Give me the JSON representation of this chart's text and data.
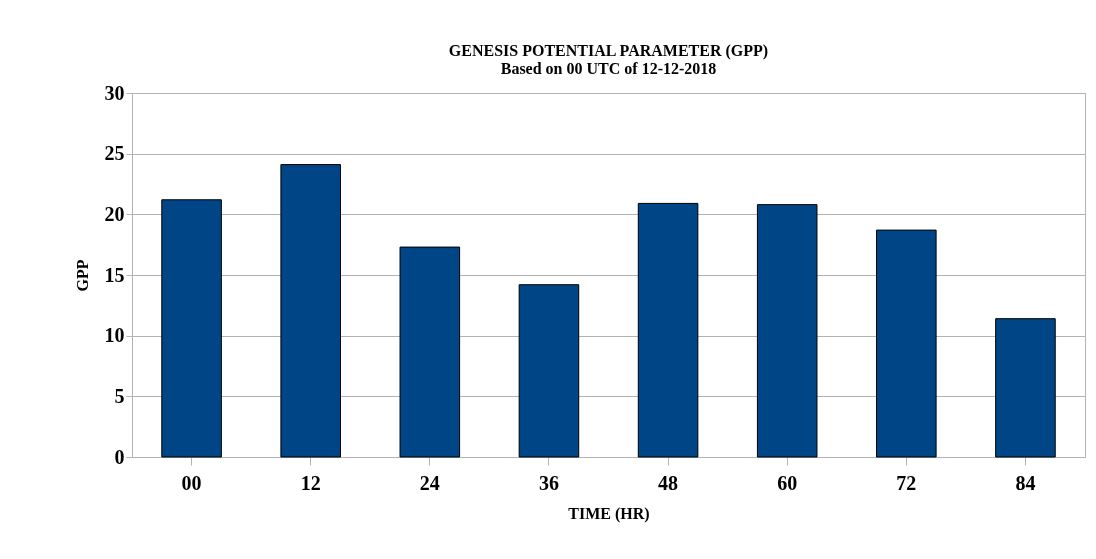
{
  "chart_data": {
    "type": "bar",
    "title": "GENESIS POTENTIAL PARAMETER (GPP)",
    "subtitle": "Based on 00 UTC of 12-12-2018",
    "xlabel": "TIME (HR)",
    "ylabel": "GPP",
    "categories": [
      "00",
      "12",
      "24",
      "36",
      "48",
      "60",
      "72",
      "84"
    ],
    "values": [
      21.2,
      24.1,
      17.3,
      14.2,
      20.9,
      20.8,
      18.7,
      11.4
    ],
    "color": "#004586",
    "ylim": [
      0,
      30
    ],
    "yticks": [
      0,
      5,
      10,
      15,
      20,
      25,
      30
    ],
    "grid": "y"
  }
}
